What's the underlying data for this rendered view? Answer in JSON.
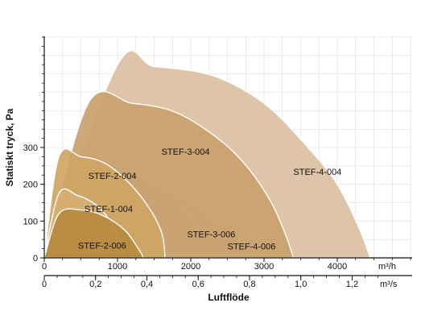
{
  "chart_data": {
    "type": "area",
    "x_primary": {
      "label": "Luftflöde",
      "unit": "m³/h",
      "range": [
        0,
        5000
      ],
      "ticks": [
        {
          "value": 0,
          "label": "0"
        },
        {
          "value": 1000,
          "label": "1000"
        },
        {
          "value": 2000,
          "label": "2000"
        },
        {
          "value": 3000,
          "label": "3000"
        },
        {
          "value": 4000,
          "label": "4000"
        }
      ]
    },
    "x_secondary": {
      "unit": "m³/s",
      "range": [
        0,
        1.39
      ],
      "ticks": [
        {
          "value": 0,
          "label": "0"
        },
        {
          "value": 0.2,
          "label": "0,2"
        },
        {
          "value": 0.4,
          "label": "0,4"
        },
        {
          "value": 0.6,
          "label": "0,6"
        },
        {
          "value": 0.8,
          "label": "0,8"
        },
        {
          "value": 1.0,
          "label": "1,0"
        },
        {
          "value": 1.2,
          "label": "1,2"
        }
      ]
    },
    "y": {
      "label": "Statiskt tryck, Pa",
      "range": [
        0,
        500
      ],
      "ticks": [
        {
          "value": 0,
          "label": "0"
        },
        {
          "value": 100,
          "label": "100"
        },
        {
          "value": 200,
          "label": "200"
        },
        {
          "value": 300,
          "label": "300"
        }
      ]
    },
    "grid": true,
    "series": [
      {
        "name": "STEF-4-006",
        "color": "#e6b894",
        "outline": [
          [
            0,
            0
          ],
          [
            300,
            225
          ],
          [
            700,
            235
          ],
          [
            1100,
            230
          ],
          [
            1500,
            205
          ],
          [
            2000,
            150
          ],
          [
            2400,
            90
          ],
          [
            2750,
            35
          ],
          [
            2900,
            0
          ]
        ],
        "label_at": [
          2500,
          23
        ]
      },
      {
        "name": "STEF-3-006",
        "color": "#efd3ac",
        "outline": [
          [
            0,
            0
          ],
          [
            300,
            230
          ],
          [
            700,
            240
          ],
          [
            1100,
            230
          ],
          [
            1500,
            195
          ],
          [
            1850,
            140
          ],
          [
            2150,
            75
          ],
          [
            2350,
            0
          ]
        ],
        "label_at": [
          1950,
          56
        ]
      },
      {
        "name": "STEF-4-004",
        "color": "#dbbfa2",
        "outline": [
          [
            0,
            0
          ],
          [
            1000,
            525
          ],
          [
            1500,
            520
          ],
          [
            2300,
            495
          ],
          [
            3000,
            420
          ],
          [
            3600,
            300
          ],
          [
            4000,
            200
          ],
          [
            4300,
            80
          ],
          [
            4450,
            0
          ]
        ],
        "label_at": [
          3400,
          226
        ]
      },
      {
        "name": "STEF-3-004",
        "color": "#c9a16e",
        "outline": [
          [
            0,
            0
          ],
          [
            600,
            420
          ],
          [
            1200,
            420
          ],
          [
            1800,
            395
          ],
          [
            2400,
            320
          ],
          [
            2800,
            240
          ],
          [
            3100,
            150
          ],
          [
            3300,
            60
          ],
          [
            3400,
            0
          ]
        ],
        "label_at": [
          1600,
          280
        ]
      },
      {
        "name": "STEF-2-004",
        "color": "#cfa564",
        "outline": [
          [
            0,
            0
          ],
          [
            200,
            275
          ],
          [
            500,
            275
          ],
          [
            800,
            260
          ],
          [
            1100,
            215
          ],
          [
            1400,
            145
          ],
          [
            1600,
            70
          ],
          [
            1650,
            0
          ]
        ],
        "label_at": [
          600,
          215
        ]
      },
      {
        "name": "STEF-1-004",
        "color": "#d7ae74",
        "outline": [
          [
            0,
            0
          ],
          [
            200,
            175
          ],
          [
            450,
            170
          ],
          [
            700,
            145
          ],
          [
            900,
            100
          ],
          [
            1050,
            40
          ],
          [
            1100,
            0
          ]
        ],
        "label_at": [
          550,
          125
        ]
      },
      {
        "name": "STEF-2-006",
        "color": "#b98940",
        "outline": [
          [
            0,
            0
          ],
          [
            200,
            120
          ],
          [
            500,
            130
          ],
          [
            800,
            115
          ],
          [
            1100,
            75
          ],
          [
            1300,
            20
          ],
          [
            1350,
            0
          ]
        ],
        "label_at": [
          460,
          25
        ]
      }
    ]
  }
}
